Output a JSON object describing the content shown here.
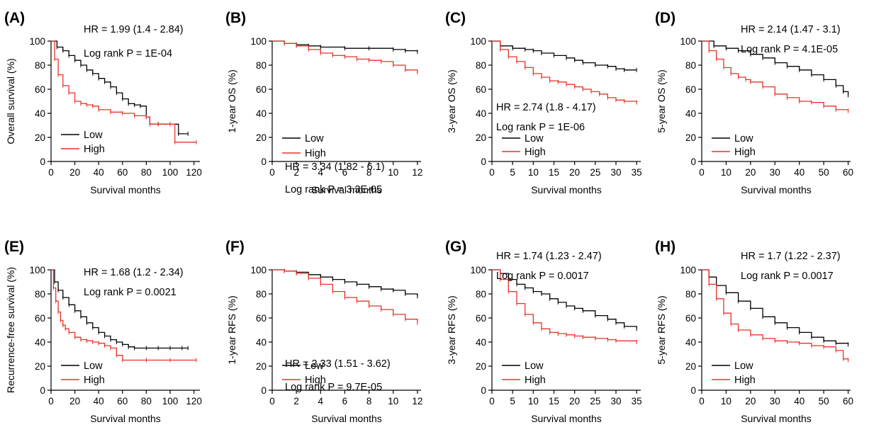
{
  "chart_data": [
    {
      "type": "line",
      "panel_label": "(A)",
      "xlabel": "Survival months",
      "ylabel": "Overall survival (%)",
      "xlim": [
        0,
        125
      ],
      "ylim": [
        0,
        100
      ],
      "xticks": [
        0,
        20,
        40,
        60,
        80,
        100,
        120
      ],
      "yticks": [
        0,
        20,
        40,
        60,
        80,
        100
      ],
      "annotation_hr": "HR = 1.99 (1.4 - 2.84)",
      "annotation_p": "Log rank P = 1E-04",
      "legend_position": "bottom-left",
      "series": [
        {
          "name": "Low",
          "color": "#000000",
          "x": [
            0,
            5,
            10,
            15,
            20,
            25,
            30,
            35,
            40,
            45,
            50,
            55,
            60,
            65,
            70,
            75,
            80,
            83,
            90,
            100,
            107,
            115
          ],
          "y": [
            100,
            95,
            92,
            88,
            84,
            80,
            76,
            73,
            69,
            66,
            62,
            57,
            52,
            48,
            47,
            46,
            37,
            31,
            31,
            31,
            23,
            23
          ]
        },
        {
          "name": "High",
          "color": "#e8322a",
          "x": [
            0,
            3,
            6,
            10,
            15,
            20,
            25,
            30,
            35,
            40,
            50,
            60,
            70,
            80,
            83,
            90,
            100,
            104,
            122
          ],
          "y": [
            100,
            85,
            72,
            63,
            57,
            50,
            48,
            47,
            46,
            43,
            41,
            40,
            38,
            37,
            31,
            31,
            31,
            16,
            16
          ]
        }
      ]
    },
    {
      "type": "line",
      "panel_label": "(B)",
      "xlabel": "Survival months",
      "ylabel": "1-year OS (%)",
      "xlim": [
        0,
        12.3
      ],
      "ylim": [
        0,
        100
      ],
      "xticks": [
        0,
        2,
        4,
        6,
        8,
        10,
        12
      ],
      "yticks": [
        0,
        20,
        40,
        60,
        80,
        100
      ],
      "annotation_hr": "HR = 3.34 (1.82 - 6.1)",
      "annotation_p": "Log rank P = 3.3E-05",
      "legend_position": "bottom-left",
      "series": [
        {
          "name": "Low",
          "color": "#000000",
          "x": [
            0,
            1,
            2,
            3,
            4,
            6,
            8,
            10,
            11,
            12
          ],
          "y": [
            100,
            98,
            97,
            96,
            95,
            94,
            94,
            93,
            92,
            91
          ]
        },
        {
          "name": "High",
          "color": "#e8322a",
          "x": [
            0,
            1,
            2,
            3,
            4,
            5,
            6,
            7,
            8,
            9,
            10,
            11,
            12
          ],
          "y": [
            100,
            98,
            96,
            93,
            90,
            88,
            87,
            85,
            84,
            83,
            80,
            76,
            74
          ]
        }
      ]
    },
    {
      "type": "line",
      "panel_label": "(C)",
      "xlabel": "Survival months",
      "ylabel": "3-year OS (%)",
      "xlim": [
        0,
        36
      ],
      "ylim": [
        0,
        100
      ],
      "xticks": [
        0,
        5,
        10,
        15,
        20,
        25,
        30,
        35
      ],
      "yticks": [
        0,
        20,
        40,
        60,
        80,
        100
      ],
      "annotation_hr": "HR = 2.74 (1.8 - 4.17)",
      "annotation_p": "Log rank P = 1E-06",
      "legend_position": "bottom-left",
      "series": [
        {
          "name": "Low",
          "color": "#000000",
          "x": [
            0,
            2,
            5,
            8,
            10,
            12,
            15,
            18,
            20,
            22,
            25,
            28,
            30,
            32,
            35
          ],
          "y": [
            100,
            96,
            94,
            93,
            92,
            90,
            88,
            86,
            84,
            82,
            80,
            79,
            77,
            76,
            76
          ]
        },
        {
          "name": "High",
          "color": "#e8322a",
          "x": [
            0,
            2,
            4,
            6,
            8,
            10,
            12,
            14,
            16,
            18,
            20,
            22,
            24,
            26,
            28,
            30,
            32,
            35
          ],
          "y": [
            100,
            93,
            87,
            83,
            78,
            73,
            70,
            67,
            66,
            64,
            62,
            60,
            58,
            56,
            53,
            51,
            50,
            49
          ]
        }
      ]
    },
    {
      "type": "line",
      "panel_label": "(D)",
      "xlabel": "Survival months",
      "ylabel": "5-year OS (%)",
      "xlim": [
        0,
        61
      ],
      "ylim": [
        0,
        100
      ],
      "xticks": [
        0,
        10,
        20,
        30,
        40,
        50,
        60
      ],
      "yticks": [
        0,
        20,
        40,
        60,
        80,
        100
      ],
      "annotation_hr": "HR = 2.14 (1.47 - 3.1)",
      "annotation_p": "Log rank P = 4.1E-05",
      "legend_position": "bottom-left",
      "series": [
        {
          "name": "Low",
          "color": "#000000",
          "x": [
            0,
            5,
            10,
            15,
            20,
            25,
            30,
            35,
            40,
            45,
            50,
            55,
            58,
            60
          ],
          "y": [
            100,
            96,
            94,
            92,
            89,
            86,
            82,
            79,
            76,
            72,
            68,
            63,
            58,
            55
          ]
        },
        {
          "name": "High",
          "color": "#e8322a",
          "x": [
            0,
            3,
            6,
            9,
            12,
            15,
            18,
            20,
            25,
            30,
            35,
            40,
            45,
            50,
            55,
            60
          ],
          "y": [
            100,
            92,
            85,
            78,
            73,
            70,
            68,
            66,
            62,
            56,
            53,
            50,
            49,
            46,
            43,
            42
          ]
        }
      ]
    },
    {
      "type": "line",
      "panel_label": "(E)",
      "xlabel": "Survival months",
      "ylabel": "Recurrence-free survival (%)",
      "xlim": [
        0,
        125
      ],
      "ylim": [
        0,
        100
      ],
      "xticks": [
        0,
        20,
        40,
        60,
        80,
        100,
        120
      ],
      "yticks": [
        0,
        20,
        40,
        60,
        80,
        100
      ],
      "annotation_hr": "HR = 1.68 (1.2 - 2.34)",
      "annotation_p": "Log rank P = 0.0021",
      "legend_position": "bottom-left",
      "series": [
        {
          "name": "Low",
          "color": "#000000",
          "x": [
            0,
            3,
            6,
            10,
            15,
            20,
            25,
            30,
            35,
            40,
            45,
            50,
            55,
            60,
            65,
            70,
            80,
            90,
            100,
            110,
            115
          ],
          "y": [
            100,
            90,
            83,
            77,
            71,
            66,
            61,
            56,
            52,
            48,
            45,
            42,
            40,
            38,
            36,
            35,
            35,
            35,
            35,
            35,
            35
          ]
        },
        {
          "name": "High",
          "color": "#e8322a",
          "x": [
            0,
            2,
            4,
            6,
            8,
            10,
            12,
            15,
            20,
            25,
            30,
            35,
            40,
            45,
            50,
            55,
            60,
            80,
            100,
            122
          ],
          "y": [
            100,
            85,
            74,
            65,
            58,
            54,
            51,
            48,
            44,
            42,
            41,
            40,
            39,
            37,
            35,
            29,
            25,
            25,
            25,
            25
          ]
        }
      ]
    },
    {
      "type": "line",
      "panel_label": "(F)",
      "xlabel": "Survival months",
      "ylabel": "1-year RFS (%)",
      "xlim": [
        0,
        12.3
      ],
      "ylim": [
        0,
        100
      ],
      "xticks": [
        0,
        2,
        4,
        6,
        8,
        10,
        12
      ],
      "yticks": [
        0,
        20,
        40,
        60,
        80,
        100
      ],
      "annotation_hr": "HR = 2.33 (1.51 - 3.62)",
      "annotation_p": "Log rank P = 9.7E-05",
      "legend_position": "bottom-left",
      "series": [
        {
          "name": "Low",
          "color": "#000000",
          "x": [
            0,
            1,
            2,
            3,
            4,
            5,
            6,
            7,
            8,
            9,
            10,
            11,
            12
          ],
          "y": [
            100,
            99,
            98,
            96,
            94,
            92,
            90,
            88,
            86,
            84,
            83,
            80,
            78
          ]
        },
        {
          "name": "High",
          "color": "#e8322a",
          "x": [
            0,
            1,
            2,
            3,
            4,
            5,
            6,
            7,
            8,
            9,
            10,
            11,
            12
          ],
          "y": [
            100,
            99,
            97,
            93,
            88,
            82,
            77,
            74,
            70,
            67,
            63,
            59,
            56
          ]
        }
      ]
    },
    {
      "type": "line",
      "panel_label": "(G)",
      "xlabel": "Survival months",
      "ylabel": "3-year RFS (%)",
      "xlim": [
        0,
        36
      ],
      "ylim": [
        0,
        100
      ],
      "xticks": [
        0,
        5,
        10,
        15,
        20,
        25,
        30,
        35
      ],
      "yticks": [
        0,
        20,
        40,
        60,
        80,
        100
      ],
      "annotation_hr": "HR = 1.74 (1.23 - 2.47)",
      "annotation_p": "Log rank P = 0.0017",
      "legend_position": "bottom-left",
      "series": [
        {
          "name": "Low",
          "color": "#000000",
          "x": [
            0,
            2,
            4,
            6,
            8,
            10,
            12,
            14,
            16,
            18,
            20,
            22,
            25,
            28,
            30,
            32,
            35
          ],
          "y": [
            100,
            97,
            92,
            88,
            85,
            82,
            80,
            76,
            73,
            70,
            68,
            66,
            62,
            59,
            56,
            53,
            51
          ]
        },
        {
          "name": "High",
          "color": "#e8322a",
          "x": [
            0,
            2,
            4,
            6,
            8,
            10,
            12,
            14,
            16,
            18,
            20,
            22,
            25,
            28,
            30,
            35
          ],
          "y": [
            100,
            92,
            82,
            72,
            63,
            56,
            51,
            48,
            47,
            46,
            45,
            44,
            43,
            42,
            41,
            40
          ]
        }
      ]
    },
    {
      "type": "line",
      "panel_label": "(H)",
      "xlabel": "Survival months",
      "ylabel": "5-year RFS (%)",
      "xlim": [
        0,
        61
      ],
      "ylim": [
        0,
        100
      ],
      "xticks": [
        0,
        10,
        20,
        30,
        40,
        50,
        60
      ],
      "yticks": [
        0,
        20,
        40,
        60,
        80,
        100
      ],
      "annotation_hr": "HR = 1.7 (1.22 - 2.37)",
      "annotation_p": "Log rank P = 0.0017",
      "legend_position": "bottom-left",
      "series": [
        {
          "name": "Low",
          "color": "#000000",
          "x": [
            0,
            3,
            6,
            10,
            15,
            20,
            25,
            30,
            35,
            40,
            45,
            50,
            55,
            60
          ],
          "y": [
            100,
            94,
            87,
            81,
            74,
            68,
            61,
            56,
            52,
            48,
            44,
            41,
            39,
            38
          ]
        },
        {
          "name": "High",
          "color": "#e8322a",
          "x": [
            0,
            3,
            6,
            9,
            12,
            15,
            20,
            25,
            30,
            35,
            40,
            45,
            50,
            55,
            58,
            60
          ],
          "y": [
            100,
            88,
            76,
            64,
            55,
            50,
            46,
            43,
            41,
            40,
            39,
            37,
            36,
            33,
            26,
            25
          ]
        }
      ]
    }
  ]
}
